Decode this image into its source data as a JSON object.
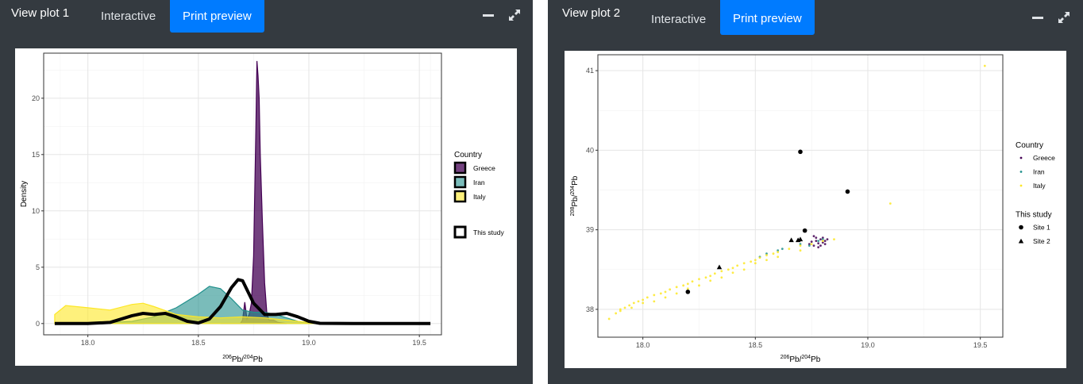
{
  "plots": [
    {
      "title": "View plot 1",
      "tabs": [
        {
          "label": "Interactive",
          "active": false
        },
        {
          "label": "Print preview",
          "active": true
        }
      ],
      "icons": [
        "minimize-icon",
        "expand-icon"
      ],
      "chart_data": {
        "type": "area",
        "subtype": "density",
        "xlabel": "206Pb/204Pb",
        "xlabel_parts": {
          "sup1": "206",
          "b1": "Pb/",
          "sup2": "204",
          "b2": "Pb"
        },
        "ylabel": "Density",
        "xlim": [
          17.8,
          19.6
        ],
        "ylim": [
          -1,
          24
        ],
        "xticks": [
          {
            "v": 18.0,
            "label": "18.0"
          },
          {
            "v": 18.5,
            "label": "18.5"
          },
          {
            "v": 19.0,
            "label": "19.0"
          },
          {
            "v": 19.5,
            "label": "19.5"
          }
        ],
        "yticks": [
          {
            "v": 0,
            "label": "0"
          },
          {
            "v": 5,
            "label": "5"
          },
          {
            "v": 10,
            "label": "10"
          },
          {
            "v": 15,
            "label": "15"
          },
          {
            "v": 20,
            "label": "20"
          }
        ],
        "grid": true,
        "legend_title": "Country",
        "legend_position": "right",
        "series": [
          {
            "name": "Greece",
            "color": "#440154",
            "opacity": 0.75,
            "x": [
              18.6,
              18.69,
              18.7,
              18.71,
              18.72,
              18.73,
              18.74,
              18.75,
              18.76,
              18.765,
              18.77,
              18.775,
              18.78,
              18.79,
              18.8,
              18.81,
              18.82,
              18.84,
              18.86,
              18.9
            ],
            "y": [
              0,
              0,
              0.3,
              1.9,
              0.4,
              0.8,
              1.8,
              6,
              17,
              23.3,
              22,
              20,
              15,
              9,
              3.6,
              0.9,
              0.3,
              0.3,
              0.1,
              0
            ]
          },
          {
            "name": "Iran",
            "color": "#21908c",
            "opacity": 0.6,
            "x": [
              18.0,
              18.2,
              18.3,
              18.4,
              18.5,
              18.55,
              18.6,
              18.65,
              18.7,
              18.75,
              18.8,
              18.85,
              18.9,
              18.95,
              19.0,
              19.1
            ],
            "y": [
              0,
              0.2,
              0.6,
              1.4,
              2.6,
              3.3,
              3.1,
              2.2,
              1.2,
              1.0,
              1.0,
              0.8,
              0.5,
              0.2,
              0.05,
              0
            ]
          },
          {
            "name": "Italy",
            "color": "#fde725",
            "opacity": 0.6,
            "x": [
              17.85,
              17.9,
              18.0,
              18.1,
              18.2,
              18.25,
              18.3,
              18.4,
              18.5,
              18.6,
              18.7,
              18.8,
              18.9,
              19.0,
              19.1
            ],
            "y": [
              0.8,
              1.6,
              1.4,
              1.2,
              1.7,
              1.8,
              1.5,
              0.8,
              0.6,
              0.5,
              0.6,
              0.5,
              0.3,
              0.1,
              0
            ]
          },
          {
            "name": "This study",
            "color": "#000000",
            "type": "line",
            "x": [
              17.85,
              18.0,
              18.1,
              18.2,
              18.25,
              18.3,
              18.35,
              18.4,
              18.45,
              18.5,
              18.55,
              18.6,
              18.65,
              18.68,
              18.7,
              18.72,
              18.75,
              18.8,
              18.85,
              18.9,
              18.95,
              19.0,
              19.05,
              19.2,
              19.5,
              19.55
            ],
            "y": [
              0,
              0,
              0.1,
              0.7,
              0.9,
              0.8,
              0.9,
              0.6,
              0.2,
              0.05,
              0.4,
              1.5,
              3.2,
              3.9,
              3.8,
              3.0,
              1.8,
              0.8,
              0.8,
              0.9,
              0.6,
              0.2,
              0.02,
              0,
              0,
              0
            ]
          }
        ],
        "extra_legend": {
          "label": "This study"
        }
      }
    },
    {
      "title": "View plot 2",
      "tabs": [
        {
          "label": "Interactive",
          "active": false
        },
        {
          "label": "Print preview",
          "active": true
        }
      ],
      "icons": [
        "minimize-icon",
        "expand-icon"
      ],
      "chart_data": {
        "type": "scatter",
        "xlabel": "206Pb/204Pb",
        "xlabel_parts": {
          "sup1": "206",
          "b1": "Pb/",
          "sup2": "204",
          "b2": "Pb"
        },
        "ylabel": "208Pb/204Pb",
        "ylabel_parts": {
          "sup1": "208",
          "b1": "Pb/",
          "sup2": "204",
          "b2": "Pb"
        },
        "xlim": [
          17.8,
          19.6
        ],
        "ylim": [
          37.65,
          41.2
        ],
        "xticks": [
          {
            "v": 18.0,
            "label": "18.0"
          },
          {
            "v": 18.5,
            "label": "18.5"
          },
          {
            "v": 19.0,
            "label": "19.0"
          },
          {
            "v": 19.5,
            "label": "19.5"
          }
        ],
        "yticks": [
          {
            "v": 38,
            "label": "38"
          },
          {
            "v": 39,
            "label": "39"
          },
          {
            "v": 40,
            "label": "40"
          },
          {
            "v": 41,
            "label": "41"
          }
        ],
        "grid": true,
        "legend_title": "Country",
        "legend_position": "right",
        "series": [
          {
            "name": "Greece",
            "color": "#440154",
            "marker": "dot",
            "x": [
              18.74,
              18.75,
              18.76,
              18.77,
              18.77,
              18.78,
              18.78,
              18.79,
              18.8,
              18.8,
              18.81,
              18.82,
              18.76,
              18.79,
              18.81
            ],
            "y": [
              38.82,
              38.85,
              38.8,
              38.86,
              38.9,
              38.83,
              38.78,
              38.88,
              38.84,
              38.9,
              38.86,
              38.88,
              38.92,
              38.8,
              38.82
            ]
          },
          {
            "name": "Iran",
            "color": "#21908c",
            "marker": "dot",
            "x": [
              18.52,
              18.55,
              18.6,
              18.62,
              18.7,
              18.74,
              18.78,
              18.8
            ],
            "y": [
              38.66,
              38.7,
              38.74,
              38.76,
              38.82,
              38.8,
              38.86,
              38.88
            ]
          },
          {
            "name": "Italy",
            "color": "#fde725",
            "marker": "dot",
            "x": [
              17.85,
              17.88,
              17.9,
              17.92,
              17.94,
              17.96,
              17.98,
              18.0,
              18.02,
              18.05,
              18.08,
              18.1,
              18.12,
              18.15,
              18.18,
              18.2,
              18.22,
              18.25,
              18.28,
              18.3,
              18.32,
              18.35,
              18.38,
              18.4,
              18.42,
              18.45,
              18.48,
              18.5,
              18.52,
              18.55,
              18.58,
              18.6,
              18.65,
              18.7,
              18.75,
              18.8,
              18.85,
              19.1,
              19.52,
              17.9,
              17.95,
              18.0,
              18.05,
              18.1,
              18.15,
              18.2,
              18.25,
              18.3,
              18.35,
              18.4,
              18.45,
              18.5,
              18.55,
              18.6,
              18.7
            ],
            "y": [
              37.88,
              37.95,
              38.0,
              38.02,
              38.05,
              38.08,
              38.1,
              38.12,
              38.15,
              38.18,
              38.2,
              38.22,
              38.25,
              38.28,
              38.3,
              38.32,
              38.35,
              38.38,
              38.4,
              38.42,
              38.45,
              38.48,
              38.5,
              38.52,
              38.55,
              38.58,
              38.6,
              38.62,
              38.65,
              38.68,
              38.7,
              38.72,
              38.76,
              38.8,
              38.82,
              38.86,
              38.88,
              39.33,
              41.06,
              37.98,
              38.02,
              38.08,
              38.1,
              38.15,
              38.2,
              38.26,
              38.3,
              38.36,
              38.4,
              38.46,
              38.5,
              38.58,
              38.62,
              38.66,
              38.74
            ]
          },
          {
            "name": "Site 1",
            "color": "#000000",
            "marker": "circle",
            "x": [
              18.2,
              18.7,
              18.72,
              18.91
            ],
            "y": [
              38.22,
              39.98,
              38.99,
              39.48
            ]
          },
          {
            "name": "Site 2",
            "color": "#000000",
            "marker": "triangle",
            "x": [
              18.34,
              18.66,
              18.69,
              18.7
            ],
            "y": [
              38.53,
              38.87,
              38.87,
              38.88
            ]
          }
        ],
        "legend_groups": [
          {
            "title": "Country",
            "items": [
              "Greece",
              "Iran",
              "Italy"
            ]
          },
          {
            "title": "This study",
            "items": [
              "Site 1",
              "Site 2"
            ]
          }
        ]
      }
    }
  ]
}
